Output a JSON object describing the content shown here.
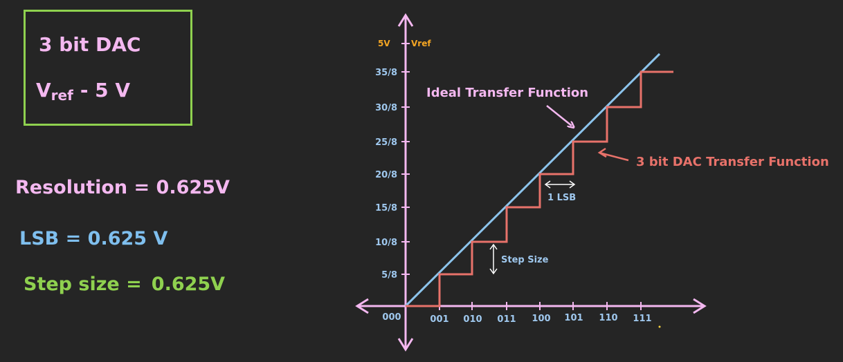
{
  "info_box": {
    "title": "3 bit DAC",
    "vref_main": "V",
    "vref_sub": "ref",
    "vref_value": "- 5 V"
  },
  "equations": {
    "resolution": "Resolution = 0.625V",
    "lsb": "LSB = 0.625 V",
    "step_label": "Step size =",
    "step_value": "0.625V"
  },
  "diagram": {
    "y_top_left": "5V",
    "y_top_right": "Vref",
    "y_ticks": [
      "35/8",
      "30/8",
      "25/8",
      "20/8",
      "15/8",
      "10/8",
      "5/8"
    ],
    "x_ticks": [
      "000",
      "001",
      "010",
      "011",
      "100",
      "101",
      "110",
      "111"
    ],
    "ideal_label": "Ideal Transfer Function",
    "dac_label": "3 bit DAC Transfer Function",
    "lsb_label": "1 LSB",
    "step_size_label": "Step Size",
    "colors": {
      "axis": "#f4b8f0",
      "ideal": "#8cc4ec",
      "dac": "#e8726a",
      "tick": "#9fc8ee",
      "vref": "#f5a623"
    }
  }
}
